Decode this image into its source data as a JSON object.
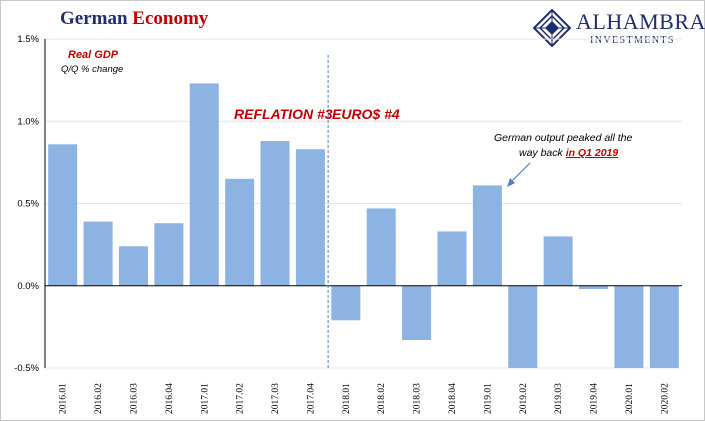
{
  "title": {
    "word1": "German",
    "word2": "Economy"
  },
  "logo": {
    "brand": "ALHAMBRA",
    "sub": "INVESTMENTS",
    "icon": "alhambra-diamond-icon"
  },
  "colors": {
    "bar": "#8db3e2",
    "accent_red": "#c00000",
    "title_blue": "#1f2f6b",
    "grid": "#e6e6e6"
  },
  "chart_data": {
    "type": "bar",
    "series_label": "Real GDP",
    "series_sublabel": "Q/Q % change",
    "categories": [
      "2016.01",
      "2016.02",
      "2016.03",
      "2016.04",
      "2017.01",
      "2017.02",
      "2017.03",
      "2017.04",
      "2018.01",
      "2018.02",
      "2018.03",
      "2018.04",
      "2019.01",
      "2019.02",
      "2019.03",
      "2019.04",
      "2020.01",
      "2020.02"
    ],
    "values": [
      0.86,
      0.39,
      0.24,
      0.38,
      1.23,
      0.65,
      0.88,
      0.83,
      -0.21,
      0.47,
      -0.33,
      0.33,
      0.61,
      -0.5,
      0.3,
      -0.02,
      -0.5,
      -0.5
    ],
    "ylim": [
      -0.5,
      1.5
    ],
    "yticks": [
      -0.5,
      0.0,
      0.5,
      1.0,
      1.5
    ],
    "ytick_labels": [
      "-0.5%",
      "0.0%",
      "0.5%",
      "1.0%",
      "1.5%"
    ],
    "grid": true,
    "divider_after_category": "2017.04",
    "annotations": {
      "reflation": "REFLATION #3",
      "euros": "EURO$ #4",
      "peak_line1": "German output peaked all the",
      "peak_line2_prefix": "way back ",
      "peak_line2_emph": "in Q1 2019"
    }
  }
}
